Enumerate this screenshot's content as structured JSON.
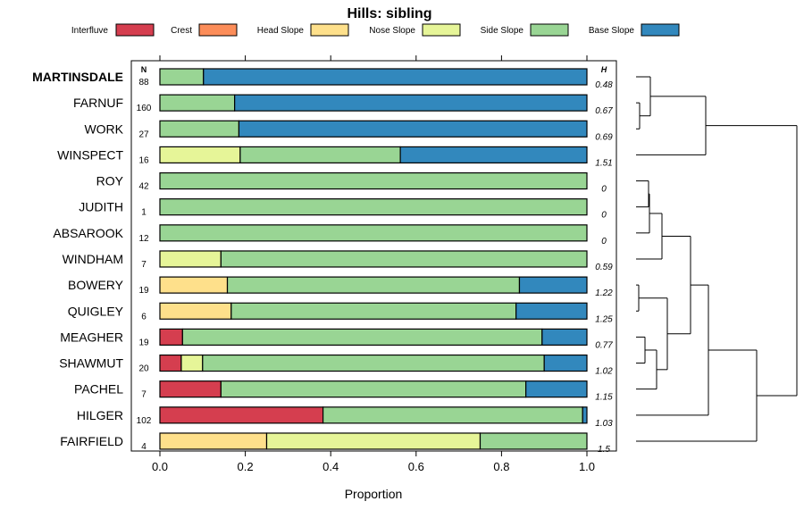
{
  "chart_data": {
    "type": "bar",
    "orientation": "horizontal",
    "stacked": true,
    "title": "Hills: sibling",
    "xlabel": "Proportion",
    "ylabel": "",
    "xlim": [
      0,
      1
    ],
    "x_ticks": [
      "0.0",
      "0.2",
      "0.4",
      "0.6",
      "0.8",
      "1.0"
    ],
    "x_tick_values": [
      0,
      0.2,
      0.4,
      0.6,
      0.8,
      1.0
    ],
    "n_header": "N",
    "h_header": "H",
    "legend": [
      {
        "name": "Interfluve",
        "color": "#D53E4F"
      },
      {
        "name": "Crest",
        "color": "#FC8D59"
      },
      {
        "name": "Head Slope",
        "color": "#FEE08B"
      },
      {
        "name": "Nose Slope",
        "color": "#E6F598"
      },
      {
        "name": "Side Slope",
        "color": "#99D594"
      },
      {
        "name": "Base Slope",
        "color": "#3288BD"
      }
    ],
    "categories": [
      "MARTINSDALE",
      "FARNUF",
      "WORK",
      "WINSPECT",
      "ROY",
      "JUDITH",
      "ABSAROOK",
      "WINDHAM",
      "BOWERY",
      "QUIGLEY",
      "MEAGHER",
      "SHAWMUT",
      "PACHEL",
      "HILGER",
      "FAIRFIELD"
    ],
    "highlight": "MARTINSDALE",
    "n": [
      "88",
      "160",
      "27",
      "16",
      "42",
      "1",
      "12",
      "7",
      "19",
      "6",
      "19",
      "20",
      "7",
      "102",
      "4"
    ],
    "h": [
      "0.48",
      "0.67",
      "0.69",
      "1.51",
      "0",
      "0",
      "0",
      "0.59",
      "1.22",
      "1.25",
      "0.77",
      "1.02",
      "1.15",
      "1.03",
      "1.5"
    ],
    "series": [
      {
        "name": "Interfluve",
        "values": [
          0,
          0,
          0,
          0,
          0,
          0,
          0,
          0,
          0,
          0,
          0.053,
          0.05,
          0.143,
          0.382,
          0
        ]
      },
      {
        "name": "Crest",
        "values": [
          0,
          0,
          0,
          0,
          0,
          0,
          0,
          0,
          0,
          0,
          0,
          0,
          0,
          0,
          0
        ]
      },
      {
        "name": "Head Slope",
        "values": [
          0,
          0,
          0,
          0,
          0,
          0,
          0,
          0,
          0.158,
          0.167,
          0,
          0,
          0,
          0,
          0.25
        ]
      },
      {
        "name": "Nose Slope",
        "values": [
          0,
          0,
          0,
          0.188,
          0,
          0,
          0,
          0.143,
          0,
          0,
          0,
          0.05,
          0,
          0,
          0.5
        ]
      },
      {
        "name": "Side Slope",
        "values": [
          0.102,
          0.175,
          0.185,
          0.375,
          1.0,
          1.0,
          1.0,
          0.857,
          0.684,
          0.667,
          0.842,
          0.8,
          0.714,
          0.608,
          0.25
        ]
      },
      {
        "name": "Base Slope",
        "values": [
          0.898,
          0.825,
          0.815,
          0.437,
          0,
          0,
          0,
          0,
          0.158,
          0.166,
          0.105,
          0.1,
          0.143,
          0.01,
          0
        ]
      }
    ],
    "dendrogram": "hierarchical clustering of the 15 soil series shown to the right of the bars"
  }
}
